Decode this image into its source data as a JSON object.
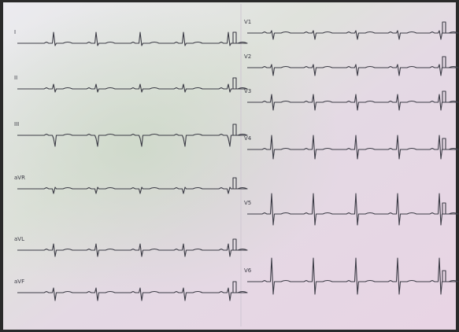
{
  "leads": {
    "left": [
      "I",
      "II",
      "III",
      "aVR",
      "aVL",
      "aVF"
    ],
    "right": [
      "V1",
      "V2",
      "V3",
      "V4",
      "V5",
      "V6"
    ]
  }
}
